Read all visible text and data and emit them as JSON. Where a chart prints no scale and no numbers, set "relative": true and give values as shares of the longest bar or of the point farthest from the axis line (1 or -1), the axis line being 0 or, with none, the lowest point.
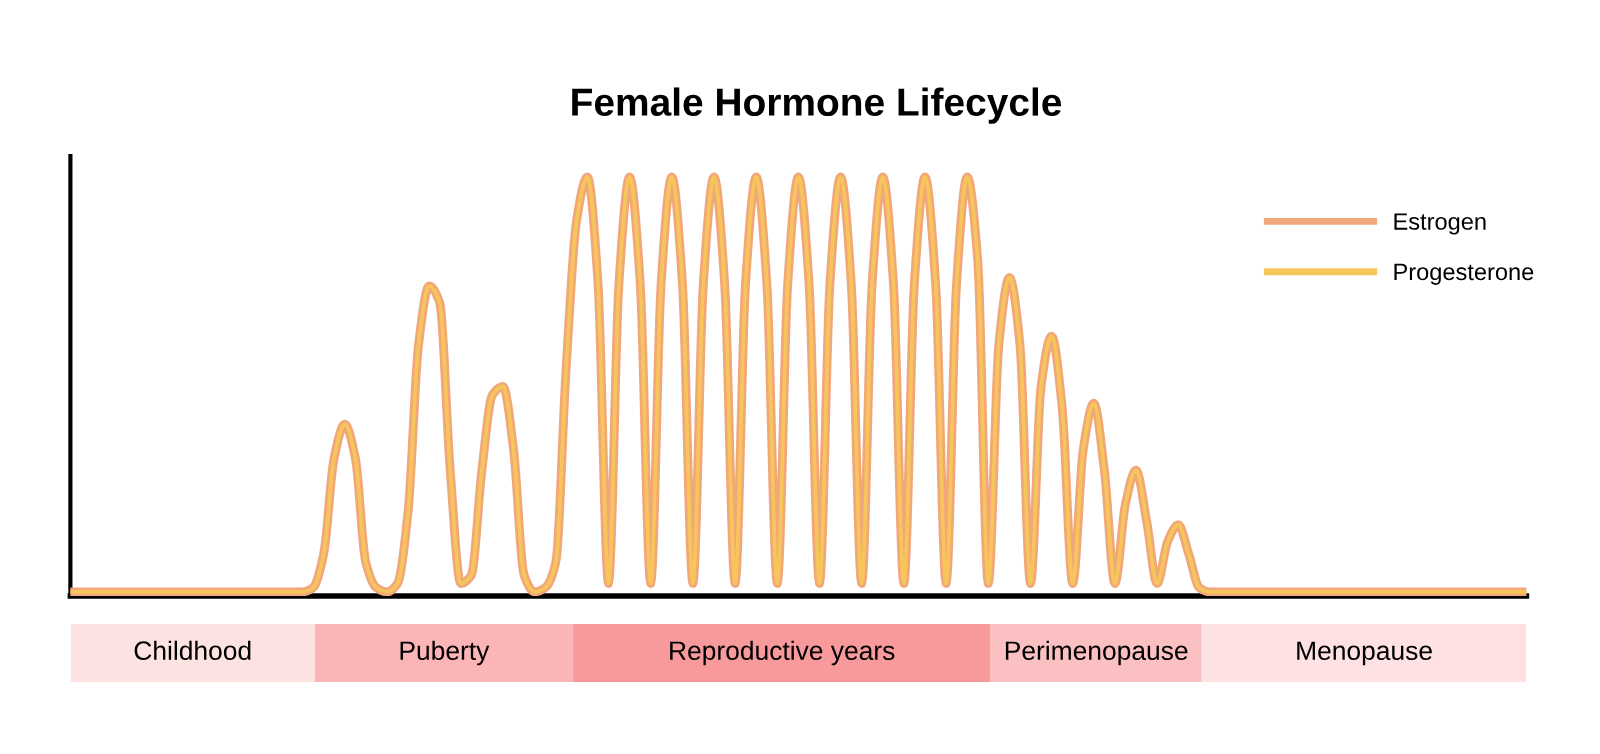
{
  "chart_data": [
    {
      "type": "line",
      "title": "Female Hormone Lifecycle",
      "relative": true,
      "categories": [
        null,
        null,
        null,
        null,
        null,
        null,
        null,
        null,
        null,
        null,
        null,
        null,
        null,
        null,
        null,
        null,
        null,
        null,
        null,
        null,
        null,
        null,
        null,
        null,
        null,
        null,
        null,
        null,
        null,
        null,
        null,
        null,
        null,
        null,
        null,
        null,
        null,
        null,
        null,
        null,
        null,
        null,
        null,
        null,
        null,
        null,
        null,
        null,
        null,
        null,
        null,
        null,
        null,
        null,
        null,
        null,
        null,
        null,
        null,
        null,
        null,
        null,
        null,
        null,
        null,
        null,
        null,
        null,
        null,
        null,
        null,
        null,
        null,
        null,
        null,
        null,
        null,
        null,
        null,
        null,
        null,
        null,
        null,
        null,
        null,
        null,
        null,
        null,
        null,
        null,
        null,
        null,
        null,
        null,
        null,
        null,
        null,
        null,
        null,
        null,
        null,
        null,
        null,
        null,
        null,
        null,
        null,
        null,
        null,
        null,
        null,
        null,
        null,
        null,
        null,
        null,
        null,
        null,
        null,
        null,
        null,
        null,
        null,
        null,
        null,
        null,
        null,
        null,
        null,
        null,
        null,
        null,
        null,
        null,
        null,
        null,
        null,
        null,
        null
      ],
      "series": [
        {
          "name": "Estrogen",
          "color": "#f2a77a",
          "values": [
            0.01,
            0.01,
            0.01,
            0.01,
            0.01,
            0.01,
            0.01,
            0.01,
            0.01,
            0.01,
            0.01,
            0.01,
            0.01,
            0.01,
            0.01,
            0.01,
            0.01,
            0.01,
            0.01,
            0.01,
            0.01,
            0.01,
            0.01,
            0.02,
            0.1,
            0.33,
            0.41,
            0.33,
            0.08,
            0.02,
            0.01,
            0.03,
            0.2,
            0.6,
            0.74,
            0.7,
            0.3,
            0.03,
            0.05,
            0.3,
            0.48,
            0.5,
            0.35,
            0.05,
            0.01,
            0.02,
            0.08,
            0.55,
            0.9,
            1,
            0.75,
            0.03,
            0.75,
            1,
            0.75,
            0.03,
            0.75,
            1,
            0.75,
            0.03,
            0.75,
            1,
            0.75,
            0.03,
            0.75,
            1,
            0.75,
            0.03,
            0.75,
            1,
            0.75,
            0.03,
            0.75,
            1,
            0.75,
            0.03,
            0.75,
            1,
            0.75,
            0.03,
            0.75,
            1,
            0.75,
            0.03,
            0.75,
            1,
            0.8,
            0.03,
            0.6,
            0.76,
            0.6,
            0.03,
            0.5,
            0.62,
            0.45,
            0.03,
            0.35,
            0.46,
            0.3,
            0.03,
            0.22,
            0.3,
            0.18,
            0.03,
            0.13,
            0.17,
            0.1,
            0.02,
            0.01,
            0.01,
            0.01,
            0.01,
            0.01,
            0.01,
            0.01,
            0.01,
            0.01,
            0.01,
            0.01,
            0.01,
            0.01,
            0.01,
            0.01,
            0.01,
            0.01,
            0.01,
            0.01,
            0.01,
            0.01,
            0.01,
            0.01,
            0.01,
            0.01,
            0.01,
            0.01,
            0.01,
            0.01,
            0.01,
            0.01
          ]
        },
        {
          "name": "Progesterone",
          "color": "#f7c65a",
          "values": [
            0.01,
            0.01,
            0.01,
            0.01,
            0.01,
            0.01,
            0.01,
            0.01,
            0.01,
            0.01,
            0.01,
            0.01,
            0.01,
            0.01,
            0.01,
            0.01,
            0.01,
            0.01,
            0.01,
            0.01,
            0.01,
            0.01,
            0.01,
            0.02,
            0.1,
            0.33,
            0.41,
            0.33,
            0.08,
            0.02,
            0.01,
            0.03,
            0.2,
            0.6,
            0.74,
            0.7,
            0.3,
            0.03,
            0.05,
            0.3,
            0.48,
            0.5,
            0.35,
            0.05,
            0.01,
            0.02,
            0.08,
            0.55,
            0.9,
            1,
            0.75,
            0.03,
            0.75,
            1,
            0.75,
            0.03,
            0.75,
            1,
            0.75,
            0.03,
            0.75,
            1,
            0.75,
            0.03,
            0.75,
            1,
            0.75,
            0.03,
            0.75,
            1,
            0.75,
            0.03,
            0.75,
            1,
            0.75,
            0.03,
            0.75,
            1,
            0.75,
            0.03,
            0.75,
            1,
            0.75,
            0.03,
            0.75,
            1,
            0.8,
            0.03,
            0.6,
            0.76,
            0.6,
            0.03,
            0.5,
            0.62,
            0.45,
            0.03,
            0.35,
            0.46,
            0.3,
            0.03,
            0.22,
            0.3,
            0.18,
            0.03,
            0.13,
            0.17,
            0.1,
            0.02,
            0.01,
            0.01,
            0.01,
            0.01,
            0.01,
            0.01,
            0.01,
            0.01,
            0.01,
            0.01,
            0.01,
            0.01,
            0.01,
            0.01,
            0.01,
            0.01,
            0.01,
            0.01,
            0.01,
            0.01,
            0.01,
            0.01,
            0.01,
            0.01,
            0.01,
            0.01,
            0.01,
            0.01,
            0.01,
            0.01,
            0.01
          ]
        }
      ],
      "legend": "top right",
      "marker": "none",
      "line_style": "solid"
    },
    {
      "type": "bar",
      "orientation": "horizontal",
      "stacked": true,
      "relative": true,
      "categories": [
        null
      ],
      "series": [
        {
          "name": "Childhood",
          "color": "#fde2e2",
          "values": [
            0.168
          ]
        },
        {
          "name": "Puberty",
          "color": "#fbb5b6",
          "values": [
            0.177
          ]
        },
        {
          "name": "Reproductive years",
          "color": "#f8999c",
          "values": [
            0.287
          ]
        },
        {
          "name": "Perimenopause",
          "color": "#fbc1c2",
          "values": [
            0.145
          ]
        },
        {
          "name": "Menopause",
          "color": "#fde1e3",
          "values": [
            0.223
          ]
        }
      ]
    }
  ]
}
